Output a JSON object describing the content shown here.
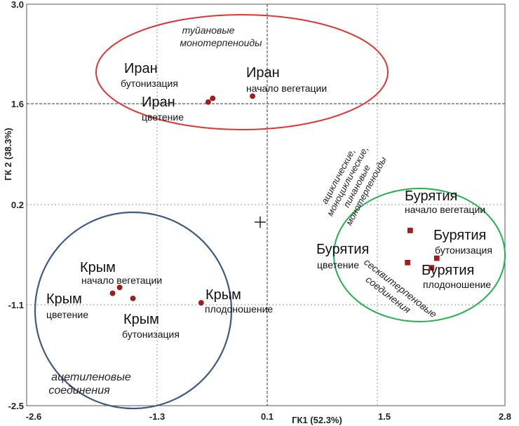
{
  "chart_data": {
    "type": "scatter",
    "title": "",
    "xlabel": "ГК1 (52.3%)",
    "ylabel": "ГК 2 (38.3%)",
    "xlim": [
      -2.6,
      2.8
    ],
    "ylim": [
      -2.5,
      3.0
    ],
    "x_ticks": [
      "-2.6",
      "-1.3",
      "0.1",
      "1.5",
      "2.8"
    ],
    "y_ticks": [
      "3.0",
      "1.6",
      "0.2",
      "-1.1",
      "-2.5"
    ],
    "reference_lines": {
      "x": 0.1,
      "y": 1.6
    },
    "grid": true,
    "series": [
      {
        "group": "Иран",
        "marker": "circle",
        "color": "#b01818",
        "points": [
          {
            "label": "Иран",
            "stage": "бутонизация",
            "x": -0.5,
            "y": 1.71
          },
          {
            "label": "Иран",
            "stage": "цветение",
            "x": -0.55,
            "y": 1.66
          },
          {
            "label": "Иран",
            "stage": "начало вегетации",
            "x": -0.05,
            "y": 1.74
          }
        ]
      },
      {
        "group": "Крым",
        "marker": "circle",
        "color": "#b01818",
        "points": [
          {
            "label": "Крым",
            "stage": "начало вегетации",
            "x": -1.55,
            "y": -0.88
          },
          {
            "label": "Крым",
            "stage": "цветение",
            "x": -1.63,
            "y": -0.96
          },
          {
            "label": "Крым",
            "stage": "бутонизация",
            "x": -1.4,
            "y": -1.03
          },
          {
            "label": "Крым",
            "stage": "плодоношение",
            "x": -0.63,
            "y": -1.09
          }
        ]
      },
      {
        "group": "Бурятия",
        "marker": "square",
        "color": "#b01818",
        "points": [
          {
            "label": "Бурятия",
            "stage": "начало вегетации",
            "x": 1.73,
            "y": -0.1
          },
          {
            "label": "Бурятия",
            "stage": "цветение",
            "x": 1.7,
            "y": -0.54
          },
          {
            "label": "Бурятия",
            "stage": "бутонизация",
            "x": 2.03,
            "y": -0.48
          },
          {
            "label": "Бурятия",
            "stage": "плодоношение",
            "x": 1.97,
            "y": -0.61
          }
        ]
      }
    ],
    "annotations": [
      {
        "id": "iran-cluster",
        "text_lines": [
          "туйановые",
          "монотерпеноиды"
        ],
        "color": "#e23333"
      },
      {
        "id": "crimea-cluster",
        "text_lines": [
          "ацетиленовые",
          "соединения"
        ],
        "color": "#3e5a84"
      },
      {
        "id": "buryatia-cluster",
        "text_lines": [
          "сесквитерпеновые",
          "соединения"
        ],
        "color": "#22b24c"
      },
      {
        "id": "center-group",
        "text_lines": [
          "ациклические,",
          "моноциклические,",
          "пинановые",
          "монотерпеноиды"
        ]
      }
    ]
  }
}
